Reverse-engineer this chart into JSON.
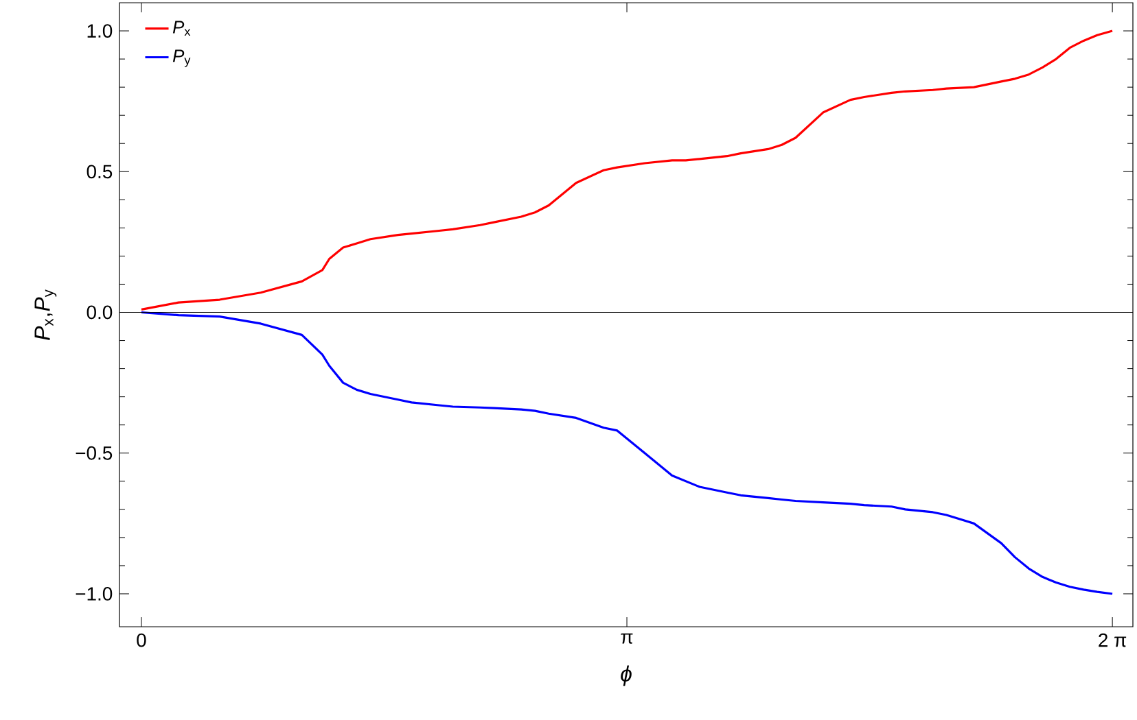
{
  "chart_data": {
    "type": "line",
    "xlabel": "*ϕ*",
    "ylabel": "*P*$_{x}$,*P*$_{y}$",
    "xlim": [
      -0.142,
      6.416
    ],
    "ylim": [
      -1.117,
      1.1
    ],
    "xticks": [
      0,
      {
        "value": 3.14159,
        "label": "π"
      },
      {
        "value": 6.28319,
        "label": "2 π"
      }
    ],
    "yticks": [
      {
        "value": -1,
        "label": "−1.0"
      },
      {
        "value": -0.5,
        "label": "−0.5"
      },
      {
        "value": 0,
        "label": "0.0"
      },
      {
        "value": 0.5,
        "label": "0.5"
      },
      {
        "value": 1,
        "label": "1.0"
      }
    ],
    "legend": "top left",
    "marker": "none",
    "line_style": "solid",
    "grid": false,
    "ref_lines": [
      {
        "axis": "y",
        "value": 0,
        "color": "#000000"
      }
    ],
    "x": [
      0,
      0.24,
      0.506,
      0.772,
      1.038,
      1.171,
      1.216,
      1.305,
      1.393,
      1.482,
      1.66,
      1.748,
      1.926,
      2.015,
      2.192,
      2.281,
      2.458,
      2.547,
      2.636,
      2.813,
      2.991,
      3.079,
      3.257,
      3.434,
      3.523,
      3.612,
      3.789,
      3.878,
      4.056,
      4.144,
      4.233,
      4.411,
      4.588,
      4.677,
      4.854,
      4.943,
      5.121,
      5.209,
      5.387,
      5.564,
      5.653,
      5.742,
      5.831,
      5.919,
      6.008,
      6.097,
      6.185,
      6.283
    ],
    "series": [
      {
        "name": "*P*$_{x}$",
        "color": "#ff0000",
        "values": [
          0.01,
          0.035,
          0.045,
          0.07,
          0.11,
          0.15,
          0.19,
          0.23,
          0.245,
          0.26,
          0.275,
          0.28,
          0.29,
          0.295,
          0.31,
          0.32,
          0.34,
          0.355,
          0.38,
          0.46,
          0.505,
          0.515,
          0.53,
          0.54,
          0.54,
          0.545,
          0.555,
          0.565,
          0.58,
          0.595,
          0.62,
          0.71,
          0.755,
          0.765,
          0.78,
          0.785,
          0.79,
          0.795,
          0.8,
          0.82,
          0.83,
          0.845,
          0.87,
          0.9,
          0.94,
          0.965,
          0.985,
          1.0
        ]
      },
      {
        "name": "*P*$_{y}$",
        "color": "#0000ff",
        "values": [
          0.0,
          -0.01,
          -0.015,
          -0.04,
          -0.08,
          -0.15,
          -0.19,
          -0.25,
          -0.275,
          -0.29,
          -0.31,
          -0.32,
          -0.33,
          -0.335,
          -0.338,
          -0.34,
          -0.345,
          -0.35,
          -0.36,
          -0.375,
          -0.41,
          -0.42,
          -0.5,
          -0.58,
          -0.6,
          -0.62,
          -0.64,
          -0.65,
          -0.66,
          -0.665,
          -0.67,
          -0.675,
          -0.68,
          -0.685,
          -0.69,
          -0.7,
          -0.71,
          -0.72,
          -0.75,
          -0.82,
          -0.87,
          -0.91,
          -0.94,
          -0.96,
          -0.975,
          -0.985,
          -0.993,
          -1.0
        ]
      }
    ]
  }
}
